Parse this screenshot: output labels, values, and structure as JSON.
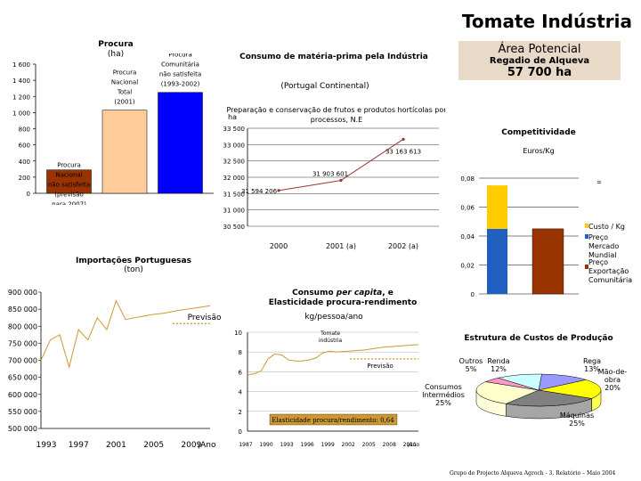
{
  "header": {
    "title": "Tomate Indústria",
    "area_label": "Área Potencial",
    "area_sub": "Regadio de Alqueva",
    "area_value": "57 700 ha"
  },
  "footer": "Grupo de Projecto Alqueva Agroch - 3. Relatório – Maio 2004",
  "chart_data": [
    {
      "id": "procura",
      "type": "bar",
      "title": "Procura",
      "subtitle": "(ha)",
      "ylim": [
        0,
        1600
      ],
      "yticks": [
        "0",
        "200",
        "400",
        "600",
        "800",
        "1 000",
        "1 200",
        "1 400",
        "1 600"
      ],
      "categories": [
        "Procura Nacional não satisfeita (previsão para 2007)",
        "Procura Nacional Total (2001)",
        "Procura Comunitária não satisfeita (1993-2002)"
      ],
      "values": [
        290,
        1030,
        1250
      ],
      "colors": [
        "#993300",
        "#ffcc99",
        "#0000ff"
      ],
      "labels": [
        [
          "Procura",
          "Nacional",
          "não satisfeita",
          "(previsão",
          "para 2007)"
        ],
        [
          "Procura",
          "Nacional",
          "Total",
          "(2001)"
        ],
        [
          "Procura",
          "Comunitária",
          "não satisfeita",
          "(1993-2002)"
        ]
      ]
    },
    {
      "id": "consumo",
      "type": "line",
      "title": "Consumo de matéria-prima pela Indústria",
      "subtitle": "(Portugal Continental)",
      "inner_title": [
        "Preparação e conservação de frutos e produtos hortícolas por",
        "processos, N.E"
      ],
      "ylabel": "ha",
      "ylim": [
        30500,
        33500
      ],
      "yticks": [
        "30 500",
        "31 000",
        "31 500",
        "32 000",
        "32 500",
        "33 000",
        "33 500"
      ],
      "categories": [
        "2000",
        "2001 (a)",
        "2002 (a)"
      ],
      "values": [
        31594.206,
        31903.601,
        33163.613
      ],
      "point_labels": [
        "31 594 206",
        "31 903 601",
        "33 163 613"
      ]
    },
    {
      "id": "competitividade",
      "type": "bar",
      "title": "Competitividade",
      "ylabel": "Euros/Kg",
      "ylim": [
        0,
        0.08
      ],
      "yticks": [
        "0",
        "0,02",
        "0,04",
        "0,06",
        "0,08"
      ],
      "series": [
        {
          "name": "Custo / Kg",
          "color": "#ffcc00",
          "values": [
            0.03,
            0
          ]
        },
        {
          "name": "Preço Mercado Mundial",
          "color": "#1f5fbf",
          "values": [
            0.045,
            0
          ]
        },
        {
          "name": "Preço Exportação Comunitária",
          "color": "#993300",
          "values": [
            0,
            0.045
          ]
        }
      ],
      "legend": [
        "Custo / Kg",
        "Preço Mercado Mundial",
        "Preço Exportação Comunitária"
      ]
    },
    {
      "id": "importacoes",
      "type": "line",
      "title": "Importações Portuguesas",
      "subtitle": "(ton)",
      "ylim": [
        500000,
        900000
      ],
      "yticks": [
        "500 000",
        "550 000",
        "600 000",
        "650 000",
        "700 000",
        "750 000",
        "800 000",
        "850 000",
        "900 000"
      ],
      "xticks": [
        "1993",
        "1997",
        "2001",
        "2005",
        "2009",
        "¡Ano"
      ],
      "x": [
        1993,
        1994,
        1995,
        1996,
        1997,
        1998,
        1999,
        2000,
        2001,
        2002,
        2003,
        2004,
        2005,
        2006,
        2007,
        2008,
        2009,
        2010,
        2011
      ],
      "values": [
        700000,
        760000,
        775000,
        680000,
        790000,
        760000,
        825000,
        790000,
        875000,
        820000,
        825000,
        830000,
        835000,
        838000,
        843000,
        848000,
        852000,
        856000,
        860000
      ],
      "forecast_label": "Previsão",
      "forecast_value": 808000
    },
    {
      "id": "consumo_per_capita",
      "type": "line",
      "title_parts": [
        "Consumo ",
        "per capita",
        ", e"
      ],
      "title_line2": "Elasticidade procura-rendimento",
      "ylabel": "kg/pessoa/ano",
      "ylim": [
        0,
        10
      ],
      "yticks": [
        "0",
        "2",
        "4",
        "6",
        "8",
        "10"
      ],
      "xticks": [
        "1987",
        "1990",
        "1993",
        "1996",
        "1999",
        "2002",
        "2005",
        "2008",
        "2011",
        "¡Ano"
      ],
      "x": [
        1987,
        1988,
        1989,
        1990,
        1991,
        1992,
        1993,
        1994,
        1995,
        1996,
        1997,
        1998,
        1999,
        2000,
        2001,
        2002,
        2003,
        2004,
        2005,
        2006,
        2007,
        2008,
        2009,
        2010,
        2011,
        2012
      ],
      "values": [
        5.7,
        5.8,
        6.1,
        7.3,
        7.8,
        7.7,
        7.2,
        7.1,
        7.1,
        7.2,
        7.4,
        7.9,
        8.1,
        8.0,
        8.05,
        8.1,
        8.15,
        8.2,
        8.3,
        8.4,
        8.5,
        8.55,
        8.6,
        8.65,
        8.7,
        8.75
      ],
      "series_label": "Tomate indústria",
      "forecast_label": "Previsão",
      "forecast_value": 7.3,
      "annotation": "Elasticidade procura/rendimento: 0,64"
    },
    {
      "id": "estrutura_custos",
      "type": "pie",
      "title": "Estrutura de Custos de Produção",
      "slices": [
        {
          "label": "Rega",
          "value": 13,
          "display": "13%",
          "color": "#9999ff"
        },
        {
          "label": "Mão-de-obra",
          "value": 20,
          "display": "20%",
          "color": "#ffff00"
        },
        {
          "label": "Máquinas",
          "value": 25,
          "display": "25%",
          "color": "#808080"
        },
        {
          "label": "Consumos Intermédios",
          "value": 25,
          "display": "25%",
          "color": "#ffffcc"
        },
        {
          "label": "Outros",
          "value": 5,
          "display": "5%",
          "color": "#ff99cc"
        },
        {
          "label": "Renda",
          "value": 12,
          "display": "12%",
          "color": "#ccffff"
        }
      ]
    }
  ]
}
